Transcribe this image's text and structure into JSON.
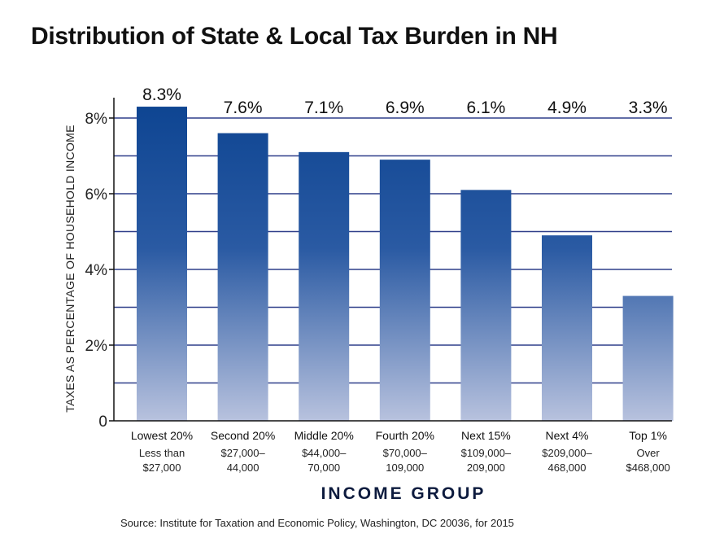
{
  "chart_data": {
    "type": "bar",
    "title": "Distribution of State & Local Tax Burden in NH",
    "ylabel": "TAXES AS PERCENTAGE OF HOUSEHOLD INCOME",
    "xlabel": "INCOME GROUP",
    "source": "Source: Institute for Taxation and Economic Policy, Washington, DC 20036, for 2015",
    "ylim": [
      0,
      8.5
    ],
    "yticks": [
      0,
      2,
      4,
      6,
      8
    ],
    "ytick_labels": [
      "0",
      "2%",
      "4%",
      "6%",
      "8%"
    ],
    "grid": true,
    "categories": [
      "Lowest 20%",
      "Second 20%",
      "Middle 20%",
      "Fourth 20%",
      "Next 15%",
      "Next 4%",
      "Top 1%"
    ],
    "subcategories": [
      [
        "Less than",
        "$27,000"
      ],
      [
        "$27,000–",
        "44,000"
      ],
      [
        "$44,000–",
        "70,000"
      ],
      [
        "$70,000–",
        "109,000"
      ],
      [
        "$109,000–",
        "209,000"
      ],
      [
        "$209,000–",
        "468,000"
      ],
      [
        "Over",
        "$468,000"
      ]
    ],
    "values": [
      8.3,
      7.6,
      7.1,
      6.9,
      6.1,
      4.9,
      3.3
    ],
    "data_labels": [
      "8.3%",
      "7.6%",
      "7.1%",
      "6.9%",
      "6.1%",
      "4.9%",
      "3.3%"
    ],
    "colors": {
      "bar_top": "#0e4592",
      "bar_bottom": "#b8c2de",
      "grid": "#2f3f8a",
      "axis": "#111111"
    }
  }
}
